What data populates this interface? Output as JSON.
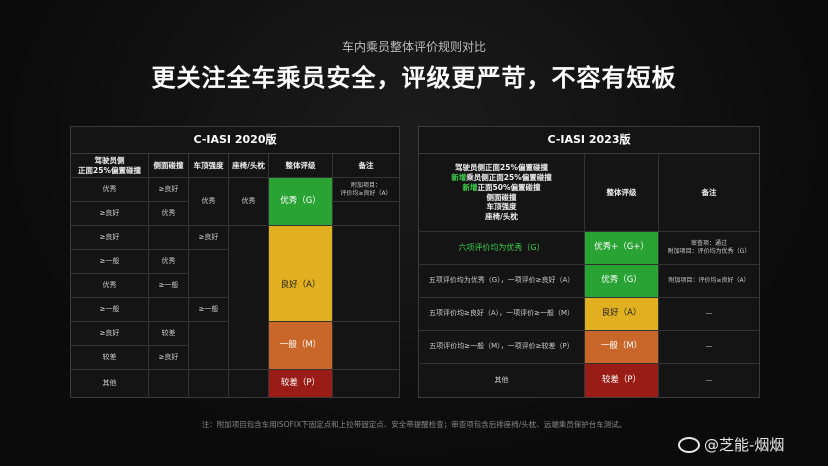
{
  "header": {
    "subtitle": "车内乘员整体评价规则对比",
    "title": "更关注全车乘员安全，评级更严苛，不容有短板"
  },
  "left": {
    "title": "C-IASI 2020版",
    "headers": [
      "驾驶员侧\n正面25%偏置碰撞",
      "侧面碰撞",
      "车顶强度",
      "座椅/头枕",
      "整体评级",
      "备注"
    ],
    "rows": [
      [
        "优秀",
        "≥良好"
      ],
      [
        "≥良好",
        "优秀"
      ],
      [
        "≥良好",
        ""
      ],
      [
        "≥一般",
        "优秀"
      ],
      [
        "优秀",
        "≥一般"
      ],
      [
        "≥一般",
        ""
      ],
      [
        "≥良好",
        "较差"
      ],
      [
        "较差",
        "≥良好"
      ],
      [
        "其他",
        ""
      ]
    ],
    "roof": [
      "优秀",
      "≥良好",
      "≥一般"
    ],
    "seat": "优秀",
    "ratings": [
      "优秀（G）",
      "良好（A）",
      "一般（M）",
      "较差（P）"
    ],
    "note": "附加项目：\n评价均≥良好（A）"
  },
  "right": {
    "title": "C-IASI 2023版",
    "criteria": [
      "驾驶员侧正面25%偏置碰撞",
      "新增乘员侧正面25%偏置碰撞",
      "新增正面50%偏置碰撞",
      "侧面碰撞",
      "车顶强度",
      "座椅/头枕"
    ],
    "new_tag": "新增",
    "header_rating": "整体评级",
    "header_note": "备注",
    "rows": [
      {
        "cond": "六项评价均为优秀（G）",
        "rating": "优秀+（G+）",
        "note": "审查项：通过\n附加项目：评价均为优秀（G）"
      },
      {
        "cond": "五项评价均为优秀（G），一项评价≥良好（A）",
        "rating": "优秀（G）",
        "note": "附加项目：评价均≥良好（A）"
      },
      {
        "cond": "五项评价均≥良好（A），一项评价≥一般（M）",
        "rating": "良好（A）",
        "note": "—"
      },
      {
        "cond": "五项评价均≥一般（M），一项评价≥较差（P）",
        "rating": "一般（M）",
        "note": "—"
      },
      {
        "cond": "其他",
        "rating": "较差（P）",
        "note": "—"
      }
    ]
  },
  "footnote": "注：附加项目包含车用ISOFIX下固定点和上拉带固定点、安全带提醒检查；审查项包含后排座椅/头枕、远端乘员保护台车测试。",
  "watermark": "@芝能-烟烟"
}
